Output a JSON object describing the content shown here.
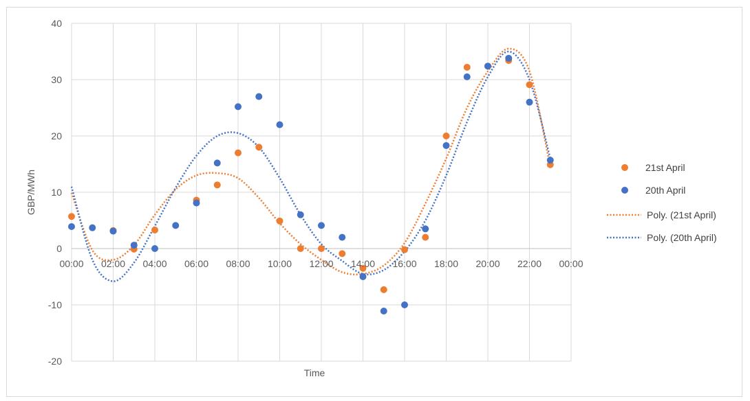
{
  "chart_data": {
    "type": "scatter",
    "title": "",
    "xlabel": "Time",
    "ylabel": "GBP/MWh",
    "xlim": [
      0,
      24
    ],
    "ylim": [
      -20,
      40
    ],
    "yticks": [
      -20,
      -10,
      0,
      10,
      20,
      30,
      40
    ],
    "xticks": [
      {
        "value": 0,
        "label": "00:00"
      },
      {
        "value": 2,
        "label": "02:00"
      },
      {
        "value": 4,
        "label": "04:00"
      },
      {
        "value": 6,
        "label": "06:00"
      },
      {
        "value": 8,
        "label": "08:00"
      },
      {
        "value": 10,
        "label": "10:00"
      },
      {
        "value": 12,
        "label": "12:00"
      },
      {
        "value": 14,
        "label": "14:00"
      },
      {
        "value": 16,
        "label": "16:00"
      },
      {
        "value": 18,
        "label": "18:00"
      },
      {
        "value": 20,
        "label": "20:00"
      },
      {
        "value": 22,
        "label": "22:00"
      },
      {
        "value": 24,
        "label": "00:00"
      }
    ],
    "grid": true,
    "legend_position": "right",
    "series": [
      {
        "name": "21st April",
        "kind": "points",
        "color": "#ed7d31",
        "x": [
          0,
          2,
          3,
          4,
          6,
          7,
          8,
          9,
          10,
          11,
          12,
          13,
          14,
          15,
          16,
          17,
          18,
          19,
          20,
          21,
          22,
          23
        ],
        "y": [
          5.7,
          3.2,
          -0.1,
          3.3,
          8.6,
          11.3,
          17.0,
          18.0,
          4.9,
          0.0,
          0.0,
          -0.9,
          -3.5,
          -7.3,
          -0.2,
          2.0,
          20.0,
          32.2,
          32.4,
          33.4,
          29.1,
          14.9
        ]
      },
      {
        "name": "20th April",
        "kind": "points",
        "color": "#4472c4",
        "x": [
          0,
          1,
          2,
          3,
          4,
          5,
          6,
          7,
          8,
          9,
          10,
          11,
          12,
          13,
          14,
          15,
          16,
          17,
          18,
          19,
          20,
          21,
          22,
          23
        ],
        "y": [
          3.9,
          3.7,
          3.1,
          0.6,
          0.0,
          4.1,
          8.1,
          15.2,
          25.2,
          27.0,
          22.0,
          6.0,
          4.1,
          2.0,
          -5.0,
          -11.1,
          -10.0,
          3.5,
          18.3,
          30.5,
          32.4,
          33.8,
          26.0,
          15.7
        ]
      },
      {
        "name": "Poly. (21st April)",
        "kind": "trendline",
        "color": "#ed7d31",
        "x": [
          0,
          1,
          2,
          3,
          4,
          5,
          6,
          7,
          8,
          9,
          10,
          11,
          12,
          13,
          14,
          15,
          16,
          17,
          18,
          19,
          20,
          21,
          22,
          23
        ],
        "y": [
          9.9,
          -0.3,
          -2.0,
          0.6,
          6.0,
          10.5,
          13.0,
          13.4,
          12.5,
          9.0,
          4.5,
          0.8,
          -2.0,
          -4.2,
          -4.5,
          -3.0,
          1.0,
          8.0,
          16.0,
          25.0,
          31.5,
          35.5,
          31.5,
          14.5
        ]
      },
      {
        "name": "Poly. (20th April)",
        "kind": "trendline",
        "color": "#4472c4",
        "x": [
          0,
          1,
          2,
          3,
          4,
          5,
          6,
          7,
          8,
          9,
          10,
          11,
          12,
          13,
          14,
          15,
          16,
          17,
          18,
          19,
          20,
          21,
          22,
          23
        ],
        "y": [
          11.0,
          -2.0,
          -5.8,
          -2.5,
          4.0,
          10.8,
          16.5,
          20.0,
          20.5,
          18.0,
          12.5,
          6.0,
          0.8,
          -2.2,
          -4.5,
          -3.8,
          -0.5,
          5.0,
          13.0,
          22.5,
          30.5,
          35.0,
          30.0,
          16.0
        ]
      }
    ]
  }
}
